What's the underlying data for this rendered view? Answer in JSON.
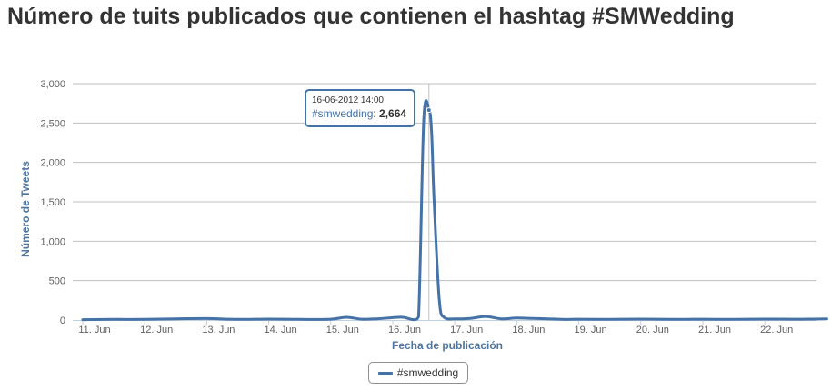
{
  "chart_data": {
    "type": "line",
    "title": "Número de tuits publicados que contienen el hashtag #SMWedding",
    "xlabel": "Fecha de publicación",
    "ylabel": "Número de Tweets",
    "x_ticks": [
      "11. Jun",
      "12. Jun",
      "13. Jun",
      "14. Jun",
      "15. Jun",
      "16. Jun",
      "17. Jun",
      "18. Jun",
      "19. Jun",
      "20. Jun",
      "21. Jun",
      "22. Jun"
    ],
    "y_ticks": [
      "0",
      "500",
      "1,000",
      "1,500",
      "2,000",
      "2,500",
      "3,000"
    ],
    "ylim": [
      0,
      3000
    ],
    "grid": true,
    "legend_position": "bottom-center",
    "series": [
      {
        "name": "#smwedding",
        "color": "#4572a7",
        "x": [
          "2012-06-11 00:00",
          "2012-06-11 12:00",
          "2012-06-12 00:00",
          "2012-06-12 12:00",
          "2012-06-13 00:00",
          "2012-06-13 12:00",
          "2012-06-14 00:00",
          "2012-06-14 12:00",
          "2012-06-15 00:00",
          "2012-06-15 06:00",
          "2012-06-15 12:00",
          "2012-06-15 18:00",
          "2012-06-16 00:00",
          "2012-06-16 04:00",
          "2012-06-16 08:00",
          "2012-06-16 10:00",
          "2012-06-16 12:00",
          "2012-06-16 14:00",
          "2012-06-16 15:00",
          "2012-06-16 16:00",
          "2012-06-16 18:00",
          "2012-06-16 20:00",
          "2012-06-17 00:00",
          "2012-06-17 06:00",
          "2012-06-17 12:00",
          "2012-06-17 18:00",
          "2012-06-18 00:00",
          "2012-06-18 06:00",
          "2012-06-18 12:00",
          "2012-06-18 18:00",
          "2012-06-19 00:00",
          "2012-06-19 12:00",
          "2012-06-20 00:00",
          "2012-06-20 12:00",
          "2012-06-21 00:00",
          "2012-06-21 12:00",
          "2012-06-22 00:00",
          "2012-06-22 12:00",
          "2012-06-23 00:00"
        ],
        "values": [
          5,
          8,
          8,
          15,
          18,
          8,
          12,
          8,
          10,
          35,
          10,
          15,
          30,
          35,
          5,
          40,
          2550,
          2664,
          2400,
          1500,
          250,
          30,
          15,
          20,
          45,
          15,
          25,
          20,
          15,
          8,
          10,
          8,
          12,
          8,
          10,
          8,
          12,
          10,
          15
        ]
      }
    ],
    "tooltip": {
      "date": "16-06-2012 14:00",
      "series": "#smwedding",
      "value": "2,664"
    }
  }
}
